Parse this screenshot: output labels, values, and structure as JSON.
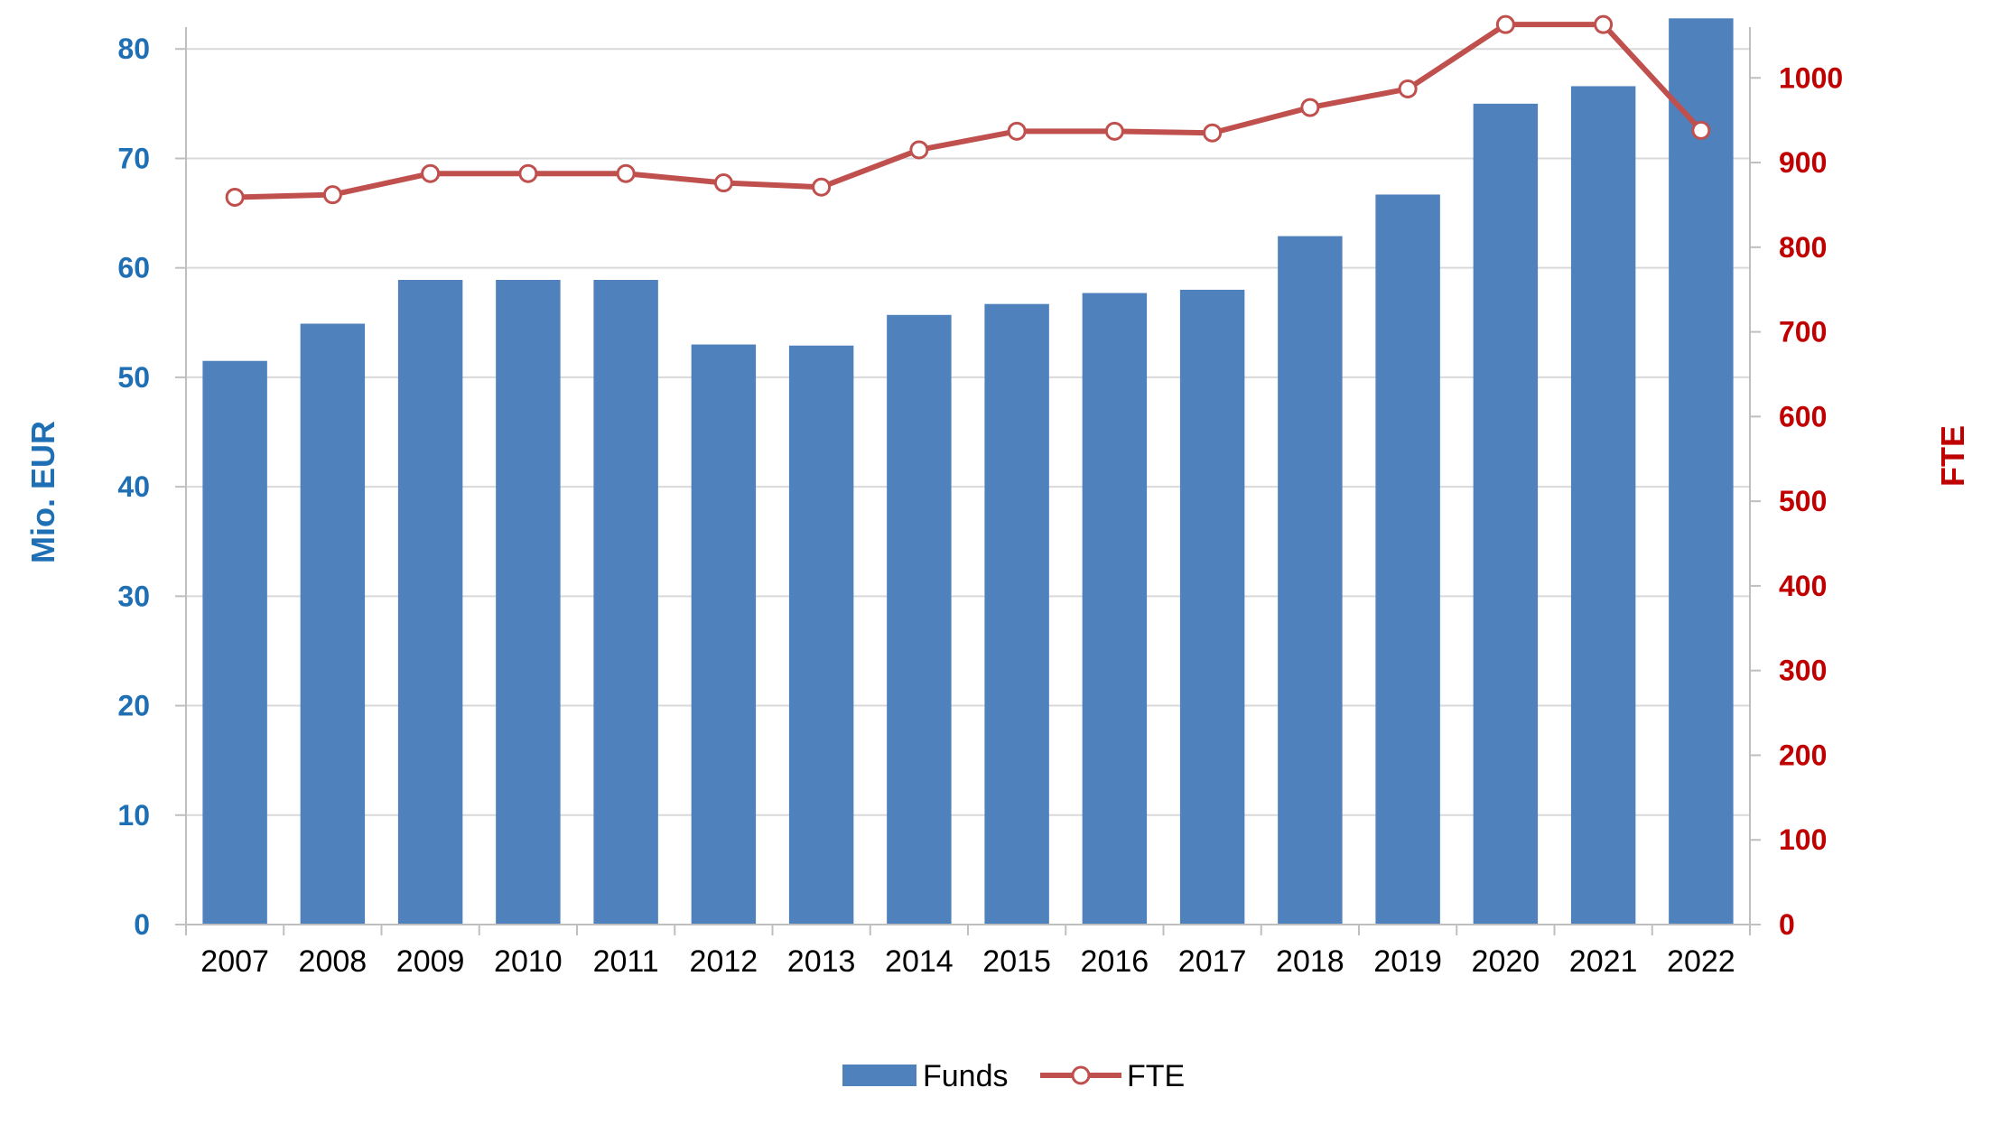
{
  "colors": {
    "bars": "#4F81BD",
    "line": "#C0504D",
    "left_axis_text": "#1F6FB4",
    "right_axis_text": "#C00000",
    "grid": "#D9D9D9",
    "axis": "#BFBFBF"
  },
  "chart_data": {
    "type": "bar",
    "categories": [
      "2007",
      "2008",
      "2009",
      "2010",
      "2011",
      "2012",
      "2013",
      "2014",
      "2015",
      "2016",
      "2017",
      "2018",
      "2019",
      "2020",
      "2021",
      "2022"
    ],
    "series": [
      {
        "name": "Funds",
        "type": "bar",
        "axis": "left",
        "values": [
          51.5,
          54.9,
          58.9,
          58.9,
          58.9,
          53.0,
          52.9,
          55.7,
          56.7,
          57.7,
          58.0,
          62.9,
          66.7,
          75.0,
          76.6,
          82.8
        ]
      },
      {
        "name": "FTE",
        "type": "line",
        "axis": "right",
        "marker": "circle",
        "values": [
          859,
          862,
          887,
          887,
          887,
          876,
          871,
          915,
          937,
          937,
          935,
          965,
          987,
          1063,
          1063,
          938
        ]
      }
    ],
    "ylabel_left": "Mio. EUR",
    "ylabel_right": "FTE",
    "ylim_left": [
      0,
      82
    ],
    "ylim_right": [
      0,
      1060
    ],
    "yticks_left": [
      "0",
      "10",
      "20",
      "30",
      "40",
      "50",
      "60",
      "70",
      "80"
    ],
    "yticks_right": [
      "0",
      "100",
      "200",
      "300",
      "400",
      "500",
      "600",
      "700",
      "800",
      "900",
      "1000"
    ],
    "grid": true,
    "legend": {
      "position": "bottom",
      "entries": [
        "Funds",
        "FTE"
      ]
    }
  }
}
